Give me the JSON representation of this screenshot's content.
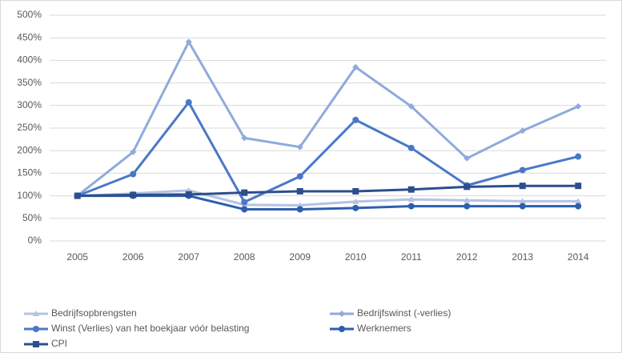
{
  "chart_data": {
    "type": "line",
    "categories": [
      "2005",
      "2006",
      "2007",
      "2008",
      "2009",
      "2010",
      "2011",
      "2012",
      "2013",
      "2014"
    ],
    "series": [
      {
        "name": "Bedrijfsopbrengsten",
        "color": "#b4c3e3",
        "marker": "triangle",
        "values": [
          100,
          105,
          112,
          80,
          79,
          87,
          92,
          90,
          88,
          88
        ]
      },
      {
        "name": "Bedrijfswinst (-verlies)",
        "color": "#8faadc",
        "marker": "diamond",
        "values": [
          100,
          197,
          441,
          228,
          208,
          385,
          298,
          183,
          244,
          298
        ]
      },
      {
        "name": "Winst (Verlies) van het boekjaar vóór belasting",
        "color": "#4a78c8",
        "marker": "circle",
        "values": [
          100,
          148,
          307,
          86,
          143,
          268,
          206,
          123,
          157,
          187
        ]
      },
      {
        "name": "Werknemers",
        "color": "#2e5fad",
        "marker": "circle",
        "values": [
          100,
          100,
          100,
          70,
          70,
          73,
          77,
          77,
          77,
          77
        ]
      },
      {
        "name": "CPI",
        "color": "#2c4f8c",
        "marker": "square",
        "values": [
          100,
          102,
          103,
          107,
          110,
          110,
          114,
          120,
          122,
          122
        ]
      }
    ],
    "ylim": [
      0,
      500
    ],
    "yticks": [
      {
        "value": 0,
        "label": "0%"
      },
      {
        "value": 50,
        "label": "50%"
      },
      {
        "value": 100,
        "label": "100%"
      },
      {
        "value": 150,
        "label": "150%"
      },
      {
        "value": 200,
        "label": "200%"
      },
      {
        "value": 250,
        "label": "250%"
      },
      {
        "value": 300,
        "label": "300%"
      },
      {
        "value": 350,
        "label": "350%"
      },
      {
        "value": 400,
        "label": "400%"
      },
      {
        "value": 450,
        "label": "450%"
      },
      {
        "value": 500,
        "label": "500%"
      }
    ],
    "grid": true,
    "legend": "bottom"
  }
}
